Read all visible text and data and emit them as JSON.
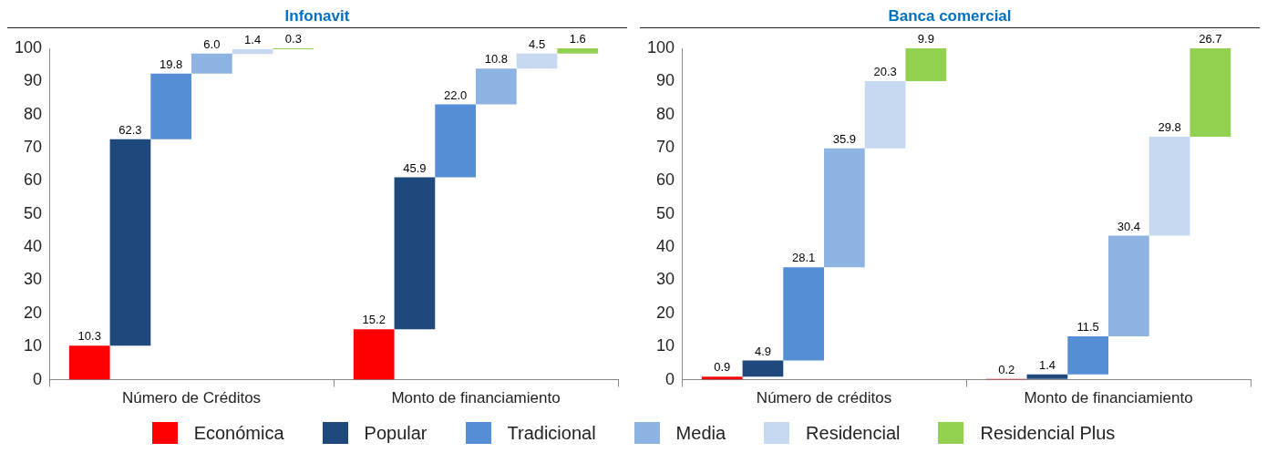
{
  "chart_data": [
    {
      "type": "bar",
      "title": "Infonavit",
      "categories": [
        "Número de Créditos",
        "Monto de financiamiento"
      ],
      "ylim": [
        0,
        100
      ],
      "yticks": [
        0,
        10,
        20,
        30,
        40,
        50,
        60,
        70,
        80,
        90,
        100
      ],
      "grid": false,
      "legend": "bottom",
      "series": [
        {
          "name": "Económica",
          "color": "#ff0000",
          "values": [
            10.3,
            15.2
          ],
          "base": [
            0,
            0
          ],
          "value_labels": [
            "10.3",
            "15.2"
          ]
        },
        {
          "name": "Popular",
          "color": "#1f497d",
          "values": [
            62.3,
            45.9
          ],
          "base": [
            10.3,
            15.2
          ],
          "value_labels": [
            "62.3",
            "45.9"
          ]
        },
        {
          "name": "Tradicional",
          "color": "#558ed5",
          "values": [
            19.8,
            22.0
          ],
          "base": [
            72.6,
            61.1
          ],
          "value_labels": [
            "19.8",
            "22.0"
          ]
        },
        {
          "name": "Media",
          "color": "#8db3e2",
          "values": [
            6.0,
            10.8
          ],
          "base": [
            92.4,
            83.1
          ],
          "value_labels": [
            "6.0",
            "10.8"
          ]
        },
        {
          "name": "Residencial",
          "color": "#c6d9f1",
          "values": [
            1.4,
            4.5
          ],
          "base": [
            98.3,
            93.9
          ],
          "value_labels": [
            "1.4",
            "4.5"
          ]
        },
        {
          "name": "Residencial Plus",
          "color": "#92d050",
          "values": [
            0.3,
            1.6
          ],
          "base": [
            99.7,
            98.4
          ],
          "value_labels": [
            "0.3",
            "1.6"
          ]
        }
      ]
    },
    {
      "type": "bar",
      "title": "Banca comercial",
      "categories": [
        "Número de créditos",
        "Monto de financiamiento"
      ],
      "ylim": [
        0,
        100
      ],
      "yticks": [
        0,
        10,
        20,
        30,
        40,
        50,
        60,
        70,
        80,
        90,
        100
      ],
      "grid": false,
      "series": [
        {
          "color": "#ff0000",
          "values": [
            0.9,
            0.2
          ],
          "base": [
            0,
            0
          ],
          "value_labels": [
            "0.9",
            "0.2"
          ]
        },
        {
          "color": "#1f497d",
          "values": [
            4.9,
            1.4
          ],
          "base": [
            0.9,
            0.2
          ],
          "value_labels": [
            "4.9",
            "1.4"
          ]
        },
        {
          "color": "#558ed5",
          "values": [
            28.1,
            11.5
          ],
          "base": [
            5.8,
            1.6
          ],
          "value_labels": [
            "28.1",
            "11.5"
          ]
        },
        {
          "color": "#8db3e2",
          "values": [
            35.9,
            30.4
          ],
          "base": [
            33.9,
            13.1
          ],
          "value_labels": [
            "35.9",
            "30.4"
          ]
        },
        {
          "color": "#c6d9f1",
          "values": [
            20.3,
            29.8
          ],
          "base": [
            69.8,
            43.5
          ],
          "value_labels": [
            "20.3",
            "29.8"
          ]
        },
        {
          "color": "#92d050",
          "values": [
            9.9,
            26.7
          ],
          "base": [
            90.1,
            73.3
          ],
          "value_labels": [
            "9.9",
            "26.7"
          ]
        }
      ]
    }
  ]
}
